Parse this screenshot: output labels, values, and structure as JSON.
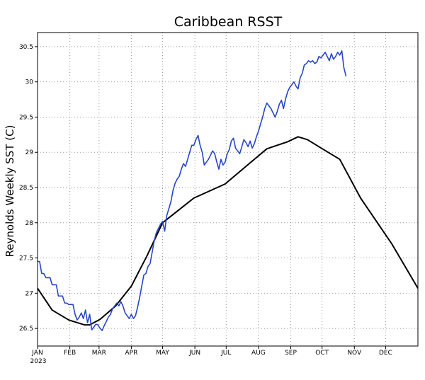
{
  "chart_data": {
    "type": "line",
    "title": "Caribbean RSST",
    "ylabel": "Reynolds Weekly SST (C)",
    "xlabel": "",
    "xlim_day": [
      0,
      365
    ],
    "ylim": [
      26.25,
      30.7
    ],
    "y_ticks": [
      26.5,
      27,
      27.5,
      28,
      28.5,
      29,
      29.5,
      30,
      30.5
    ],
    "y_tick_labels": [
      "26.5",
      "27",
      "27.5",
      "28",
      "28.5",
      "29",
      "29.5",
      "30",
      "30.5"
    ],
    "x_ticks": [
      {
        "label": "JAN",
        "day": 0
      },
      {
        "label": "FEB",
        "day": 31
      },
      {
        "label": "MAR",
        "day": 59
      },
      {
        "label": "APR",
        "day": 90
      },
      {
        "label": "MAY",
        "day": 120
      },
      {
        "label": "JUN",
        "day": 151
      },
      {
        "label": "JUL",
        "day": 181
      },
      {
        "label": "AUG",
        "day": 212
      },
      {
        "label": "SEP",
        "day": 243
      },
      {
        "label": "OCT",
        "day": 273
      },
      {
        "label": "NOV",
        "day": 304
      },
      {
        "label": "DEC",
        "day": 334
      }
    ],
    "year_label": "2023",
    "grid": true,
    "series": [
      {
        "color": "#000000",
        "x_day": [
          0,
          14,
          30,
          45,
          50,
          60,
          75,
          90,
          105,
          120,
          150,
          180,
          200,
          220,
          240,
          250,
          259,
          270,
          290,
          310,
          340,
          365
        ],
        "values": [
          27.07,
          26.76,
          26.62,
          26.55,
          26.55,
          26.63,
          26.82,
          27.1,
          27.53,
          28.0,
          28.35,
          28.55,
          28.8,
          29.05,
          29.15,
          29.22,
          29.18,
          29.08,
          28.9,
          28.35,
          27.7,
          27.07
        ]
      },
      {
        "color": "#2745c8",
        "x_day": [
          0,
          2,
          4,
          6,
          8,
          10,
          12,
          14,
          16,
          18,
          20,
          22,
          24,
          26,
          28,
          30,
          32,
          34,
          36,
          38,
          40,
          42,
          44,
          46,
          48,
          50,
          52,
          54,
          56,
          58,
          60,
          62,
          64,
          66,
          68,
          70,
          72,
          74,
          76,
          78,
          80,
          82,
          84,
          86,
          88,
          90,
          92,
          94,
          96,
          98,
          100,
          102,
          104,
          106,
          108,
          110,
          112,
          114,
          116,
          118,
          120,
          122,
          124,
          126,
          128,
          130,
          132,
          134,
          136,
          138,
          140,
          142,
          144,
          146,
          148,
          150,
          152,
          154,
          156,
          158,
          160,
          162,
          164,
          166,
          168,
          170,
          172,
          174,
          176,
          178,
          180,
          182,
          184,
          186,
          188,
          190,
          192,
          194,
          196,
          198,
          200,
          202,
          204,
          206,
          208,
          210,
          212,
          214,
          216,
          218,
          220,
          222,
          224,
          226,
          228,
          230,
          232,
          234,
          236,
          238,
          240,
          242,
          244,
          246,
          248,
          250,
          252,
          254,
          256,
          258,
          260,
          262,
          264,
          266,
          268,
          270,
          272,
          274,
          276,
          278,
          280,
          282,
          284,
          286,
          288,
          290,
          292,
          294,
          296
        ],
        "values": [
          27.45,
          27.45,
          27.28,
          27.28,
          27.22,
          27.22,
          27.22,
          27.12,
          27.12,
          27.12,
          26.96,
          26.96,
          26.96,
          26.86,
          26.86,
          26.84,
          26.84,
          26.84,
          26.7,
          26.62,
          26.66,
          26.72,
          26.64,
          26.76,
          26.58,
          26.7,
          26.48,
          26.52,
          26.56,
          26.55,
          26.5,
          26.47,
          26.54,
          26.6,
          26.66,
          26.7,
          26.78,
          26.82,
          26.86,
          26.82,
          26.88,
          26.82,
          26.72,
          26.68,
          26.64,
          26.7,
          26.64,
          26.68,
          26.8,
          26.94,
          27.1,
          27.26,
          27.28,
          27.38,
          27.42,
          27.58,
          27.75,
          27.86,
          27.92,
          27.98,
          28.02,
          27.88,
          28.1,
          28.2,
          28.3,
          28.46,
          28.56,
          28.62,
          28.66,
          28.76,
          28.84,
          28.8,
          28.9,
          29.0,
          29.1,
          29.1,
          29.18,
          29.24,
          29.1,
          29.0,
          28.82,
          28.86,
          28.9,
          28.96,
          29.02,
          28.98,
          28.86,
          28.76,
          28.9,
          28.82,
          28.86,
          28.98,
          29.04,
          29.16,
          29.2,
          29.06,
          29.02,
          28.98,
          29.08,
          29.18,
          29.14,
          29.08,
          29.16,
          29.06,
          29.12,
          29.22,
          29.3,
          29.4,
          29.5,
          29.62,
          29.7,
          29.66,
          29.62,
          29.56,
          29.5,
          29.58,
          29.68,
          29.74,
          29.62,
          29.76,
          29.86,
          29.92,
          29.96,
          30.0,
          29.94,
          29.9,
          30.06,
          30.12,
          30.24,
          30.26,
          30.3,
          30.28,
          30.3,
          30.26,
          30.28,
          30.36,
          30.34,
          30.38,
          30.42,
          30.36,
          30.3,
          30.4,
          30.32,
          30.36,
          30.42,
          30.38,
          30.44,
          30.2,
          30.08
        ]
      }
    ]
  }
}
